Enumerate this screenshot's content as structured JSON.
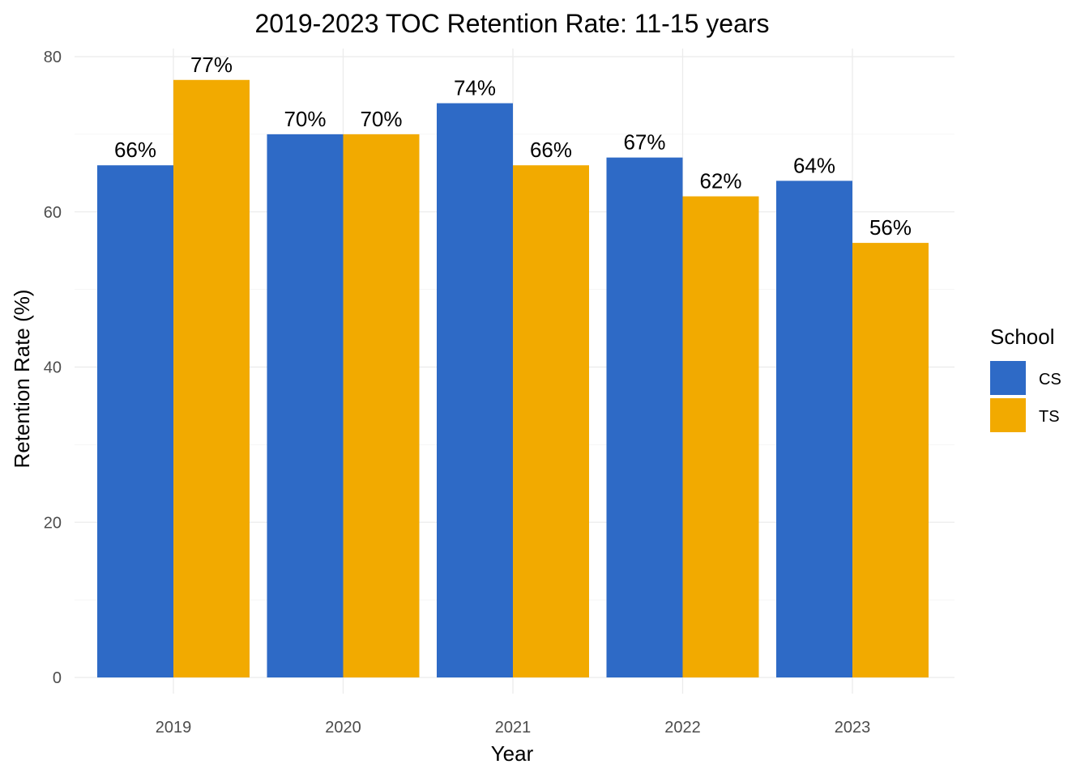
{
  "chart_data": {
    "type": "bar",
    "title": "2019-2023 TOC Retention Rate: 11-15 years",
    "xlabel": "Year",
    "ylabel": "Retention Rate (%)",
    "categories": [
      "2019",
      "2020",
      "2021",
      "2022",
      "2023"
    ],
    "series": [
      {
        "name": "CS",
        "color": "#2e6ac6",
        "values": [
          66,
          70,
          74,
          67,
          64
        ],
        "labels": [
          "66%",
          "70%",
          "74%",
          "67%",
          "64%"
        ]
      },
      {
        "name": "TS",
        "color": "#f2aa00",
        "values": [
          77,
          70,
          66,
          62,
          56
        ],
        "labels": [
          "77%",
          "70%",
          "66%",
          "62%",
          "56%"
        ]
      }
    ],
    "ylim": [
      0,
      80
    ],
    "yticks": [
      0,
      20,
      40,
      60,
      80
    ],
    "yticks_labels": [
      "0",
      "20",
      "40",
      "60",
      "80"
    ],
    "grid": true,
    "legend": {
      "title": "School",
      "position": "right"
    }
  }
}
